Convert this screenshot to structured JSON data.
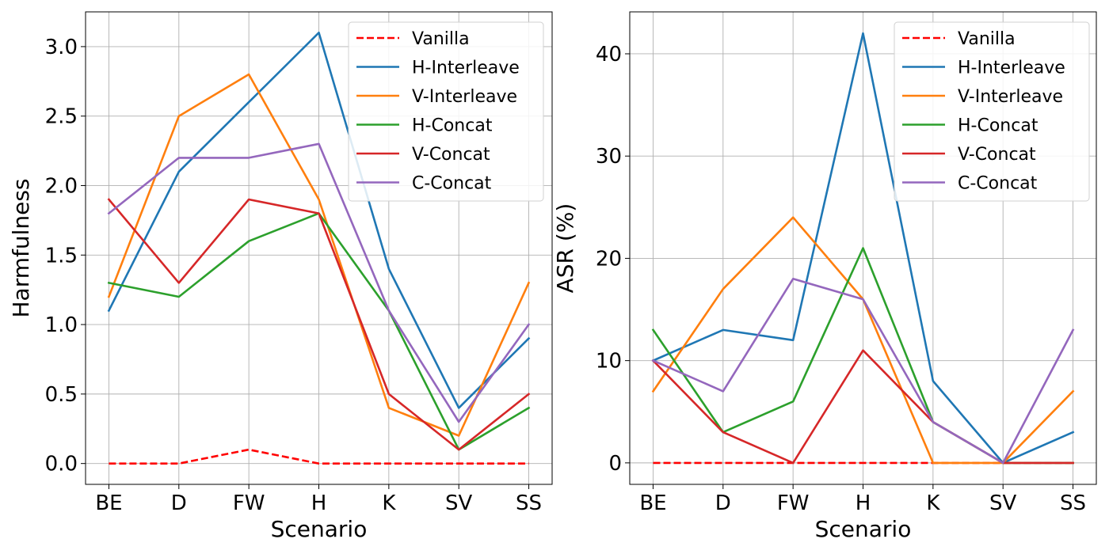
{
  "chart_data": [
    {
      "type": "line",
      "id": "left",
      "categories": [
        "BE",
        "D",
        "FW",
        "H",
        "K",
        "SV",
        "SS"
      ],
      "xlabel": "Scenario",
      "ylabel": "Harmfulness",
      "ylim": [
        -0.15,
        3.25
      ],
      "yticks": [
        0.0,
        0.5,
        1.0,
        1.5,
        2.0,
        2.5,
        3.0
      ],
      "ytick_labels": [
        "0.0",
        "0.5",
        "1.0",
        "1.5",
        "2.0",
        "2.5",
        "3.0"
      ],
      "grid": true,
      "legend_position": "top-right",
      "series": [
        {
          "name": "Vanilla",
          "color": "#ff0000",
          "dashed": true,
          "values": [
            0.0,
            0.0,
            0.1,
            0.0,
            0.0,
            0.0,
            0.0
          ]
        },
        {
          "name": "H-Interleave",
          "color": "#1f77b4",
          "dashed": false,
          "values": [
            1.1,
            2.1,
            2.6,
            3.1,
            1.4,
            0.4,
            0.9
          ]
        },
        {
          "name": "V-Interleave",
          "color": "#ff7f0e",
          "dashed": false,
          "values": [
            1.2,
            2.5,
            2.8,
            1.9,
            0.4,
            0.2,
            1.3
          ]
        },
        {
          "name": "H-Concat",
          "color": "#2ca02c",
          "dashed": false,
          "values": [
            1.3,
            1.2,
            1.6,
            1.8,
            1.1,
            0.1,
            0.4
          ]
        },
        {
          "name": "V-Concat",
          "color": "#d62728",
          "dashed": false,
          "values": [
            1.9,
            1.3,
            1.9,
            1.8,
            0.5,
            0.1,
            0.5
          ]
        },
        {
          "name": "C-Concat",
          "color": "#9467bd",
          "dashed": false,
          "values": [
            1.8,
            2.2,
            2.2,
            2.3,
            1.1,
            0.3,
            1.0
          ]
        }
      ]
    },
    {
      "type": "line",
      "id": "right",
      "categories": [
        "BE",
        "D",
        "FW",
        "H",
        "K",
        "SV",
        "SS"
      ],
      "xlabel": "Scenario",
      "ylabel": "ASR (%)",
      "ylim": [
        -2.1,
        44.1
      ],
      "yticks": [
        0,
        10,
        20,
        30,
        40
      ],
      "ytick_labels": [
        "0",
        "10",
        "20",
        "30",
        "40"
      ],
      "grid": true,
      "legend_position": "top-right",
      "series": [
        {
          "name": "Vanilla",
          "color": "#ff0000",
          "dashed": true,
          "values": [
            0,
            0,
            0,
            0,
            0,
            0,
            0
          ]
        },
        {
          "name": "H-Interleave",
          "color": "#1f77b4",
          "dashed": false,
          "values": [
            10,
            13,
            12,
            42,
            8,
            0,
            3
          ]
        },
        {
          "name": "V-Interleave",
          "color": "#ff7f0e",
          "dashed": false,
          "values": [
            7,
            17,
            24,
            16,
            0,
            0,
            7
          ]
        },
        {
          "name": "H-Concat",
          "color": "#2ca02c",
          "dashed": false,
          "values": [
            13,
            3,
            6,
            21,
            4,
            0,
            0
          ]
        },
        {
          "name": "V-Concat",
          "color": "#d62728",
          "dashed": false,
          "values": [
            10,
            3,
            0,
            11,
            4,
            0,
            0
          ]
        },
        {
          "name": "C-Concat",
          "color": "#9467bd",
          "dashed": false,
          "values": [
            10,
            7,
            18,
            16,
            4,
            0,
            13
          ]
        }
      ]
    }
  ]
}
